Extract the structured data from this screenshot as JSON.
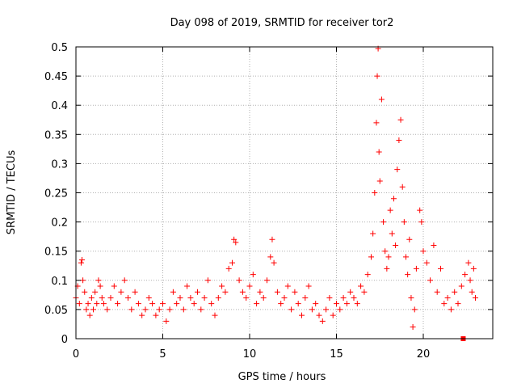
{
  "chart_data": {
    "type": "scatter",
    "title": "Day 098 of 2019, SRMTID for receiver tor2",
    "xlabel": "GPS time / hours",
    "ylabel": "SRMTID / TECUs",
    "xlim": [
      0,
      24
    ],
    "ylim": [
      0,
      0.5
    ],
    "x_ticks": [
      0,
      5,
      10,
      15,
      20
    ],
    "x_tick_labels": [
      "0",
      "5",
      "10",
      "15",
      "20"
    ],
    "y_ticks": [
      0,
      0.05,
      0.1,
      0.15,
      0.2,
      0.25,
      0.3,
      0.35,
      0.4,
      0.45,
      0.5
    ],
    "y_tick_labels": [
      "0",
      "0.05",
      "0.1",
      "0.15",
      "0.2",
      "0.25",
      "0.3",
      "0.35",
      "0.4",
      "0.45",
      "0.5"
    ],
    "grid": true,
    "marker": "plus",
    "color": "#ff0000",
    "series": [
      {
        "name": "SRMTID",
        "points": [
          [
            0.0,
            0.07
          ],
          [
            0.1,
            0.09
          ],
          [
            0.2,
            0.06
          ],
          [
            0.3,
            0.13
          ],
          [
            0.35,
            0.135
          ],
          [
            0.4,
            0.1
          ],
          [
            0.5,
            0.08
          ],
          [
            0.6,
            0.05
          ],
          [
            0.7,
            0.06
          ],
          [
            0.8,
            0.04
          ],
          [
            0.9,
            0.07
          ],
          [
            1.0,
            0.05
          ],
          [
            1.1,
            0.08
          ],
          [
            1.2,
            0.06
          ],
          [
            1.3,
            0.1
          ],
          [
            1.4,
            0.09
          ],
          [
            1.5,
            0.07
          ],
          [
            1.6,
            0.06
          ],
          [
            1.8,
            0.05
          ],
          [
            2.0,
            0.07
          ],
          [
            2.2,
            0.09
          ],
          [
            2.4,
            0.06
          ],
          [
            2.6,
            0.08
          ],
          [
            2.8,
            0.1
          ],
          [
            3.0,
            0.07
          ],
          [
            3.2,
            0.05
          ],
          [
            3.4,
            0.08
          ],
          [
            3.6,
            0.06
          ],
          [
            3.8,
            0.04
          ],
          [
            4.0,
            0.05
          ],
          [
            4.2,
            0.07
          ],
          [
            4.4,
            0.06
          ],
          [
            4.6,
            0.04
          ],
          [
            4.8,
            0.05
          ],
          [
            5.0,
            0.06
          ],
          [
            5.2,
            0.03
          ],
          [
            5.4,
            0.05
          ],
          [
            5.6,
            0.08
          ],
          [
            5.8,
            0.06
          ],
          [
            6.0,
            0.07
          ],
          [
            6.2,
            0.05
          ],
          [
            6.4,
            0.09
          ],
          [
            6.6,
            0.07
          ],
          [
            6.8,
            0.06
          ],
          [
            7.0,
            0.08
          ],
          [
            7.2,
            0.05
          ],
          [
            7.4,
            0.07
          ],
          [
            7.6,
            0.1
          ],
          [
            7.8,
            0.06
          ],
          [
            8.0,
            0.04
          ],
          [
            8.2,
            0.07
          ],
          [
            8.4,
            0.09
          ],
          [
            8.6,
            0.08
          ],
          [
            8.8,
            0.12
          ],
          [
            9.0,
            0.13
          ],
          [
            9.1,
            0.17
          ],
          [
            9.2,
            0.165
          ],
          [
            9.4,
            0.1
          ],
          [
            9.6,
            0.08
          ],
          [
            9.8,
            0.07
          ],
          [
            10.0,
            0.09
          ],
          [
            10.2,
            0.11
          ],
          [
            10.4,
            0.06
          ],
          [
            10.6,
            0.08
          ],
          [
            10.8,
            0.07
          ],
          [
            11.0,
            0.1
          ],
          [
            11.2,
            0.14
          ],
          [
            11.3,
            0.17
          ],
          [
            11.4,
            0.13
          ],
          [
            11.6,
            0.08
          ],
          [
            11.8,
            0.06
          ],
          [
            12.0,
            0.07
          ],
          [
            12.2,
            0.09
          ],
          [
            12.4,
            0.05
          ],
          [
            12.6,
            0.08
          ],
          [
            12.8,
            0.06
          ],
          [
            13.0,
            0.04
          ],
          [
            13.2,
            0.07
          ],
          [
            13.4,
            0.09
          ],
          [
            13.6,
            0.05
          ],
          [
            13.8,
            0.06
          ],
          [
            14.0,
            0.04
          ],
          [
            14.2,
            0.03
          ],
          [
            14.4,
            0.05
          ],
          [
            14.6,
            0.07
          ],
          [
            14.8,
            0.04
          ],
          [
            15.0,
            0.06
          ],
          [
            15.2,
            0.05
          ],
          [
            15.4,
            0.07
          ],
          [
            15.6,
            0.06
          ],
          [
            15.8,
            0.08
          ],
          [
            16.0,
            0.07
          ],
          [
            16.2,
            0.06
          ],
          [
            16.4,
            0.09
          ],
          [
            16.6,
            0.08
          ],
          [
            16.8,
            0.11
          ],
          [
            17.0,
            0.14
          ],
          [
            17.1,
            0.18
          ],
          [
            17.2,
            0.25
          ],
          [
            17.3,
            0.37
          ],
          [
            17.35,
            0.45
          ],
          [
            17.4,
            0.497
          ],
          [
            17.45,
            0.32
          ],
          [
            17.5,
            0.27
          ],
          [
            17.6,
            0.41
          ],
          [
            17.7,
            0.2
          ],
          [
            17.8,
            0.15
          ],
          [
            17.9,
            0.12
          ],
          [
            18.0,
            0.14
          ],
          [
            18.1,
            0.22
          ],
          [
            18.2,
            0.18
          ],
          [
            18.3,
            0.24
          ],
          [
            18.4,
            0.16
          ],
          [
            18.5,
            0.29
          ],
          [
            18.6,
            0.34
          ],
          [
            18.7,
            0.375
          ],
          [
            18.8,
            0.26
          ],
          [
            18.9,
            0.2
          ],
          [
            19.0,
            0.14
          ],
          [
            19.1,
            0.11
          ],
          [
            19.2,
            0.17
          ],
          [
            19.3,
            0.07
          ],
          [
            19.4,
            0.02
          ],
          [
            19.5,
            0.05
          ],
          [
            19.6,
            0.12
          ],
          [
            19.8,
            0.22
          ],
          [
            19.9,
            0.2
          ],
          [
            20.0,
            0.15
          ],
          [
            20.2,
            0.13
          ],
          [
            20.4,
            0.1
          ],
          [
            20.6,
            0.16
          ],
          [
            20.8,
            0.08
          ],
          [
            21.0,
            0.12
          ],
          [
            21.2,
            0.06
          ],
          [
            21.4,
            0.07
          ],
          [
            21.6,
            0.05
          ],
          [
            21.8,
            0.08
          ],
          [
            22.0,
            0.06
          ],
          [
            22.2,
            0.09
          ],
          [
            22.4,
            0.11
          ],
          [
            22.6,
            0.13
          ],
          [
            22.7,
            0.1
          ],
          [
            22.8,
            0.08
          ],
          [
            22.9,
            0.12
          ],
          [
            23.0,
            0.07
          ]
        ]
      }
    ],
    "annotations": [
      {
        "type": "square-marker",
        "x": 22.3,
        "y": 0.0
      }
    ]
  }
}
